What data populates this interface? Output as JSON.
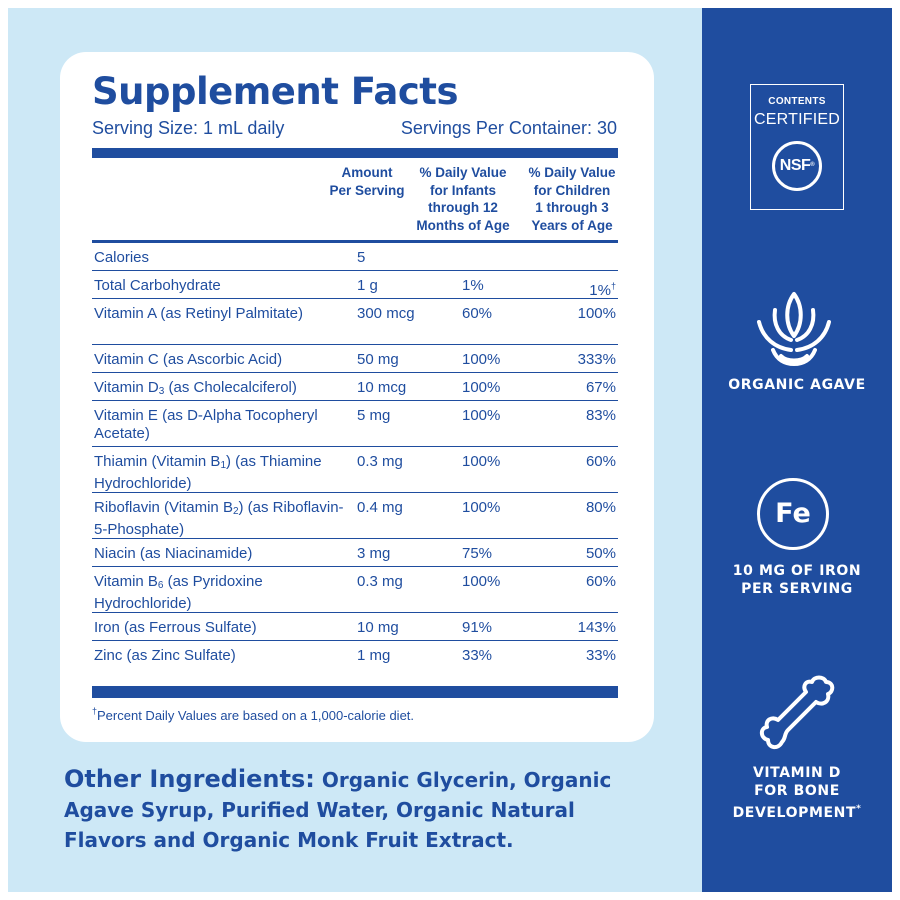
{
  "supplement_facts": {
    "title": "Supplement Facts",
    "serving_size": "Serving Size: 1 mL daily",
    "servings_per_container": "Servings Per Container: 30",
    "column_headers": {
      "amount": "Amount\nPer Serving",
      "infants": "% Daily Value\nfor Infants\nthrough 12\nMonths of Age",
      "children": "% Daily Value\nfor Children\n1 through 3\nYears of Age"
    },
    "rows": [
      {
        "nutrient": "Calories",
        "amount": "5",
        "infants": "",
        "children": ""
      },
      {
        "nutrient": "Total Carbohydrate",
        "amount": "1 g",
        "infants": "1%",
        "children": "1%"
      },
      {
        "nutrient": "Vitamin A (as Retinyl Palmitate)",
        "amount": "300 mcg",
        "infants": "60%",
        "children": "100%"
      },
      {
        "nutrient": "Vitamin C (as Ascorbic Acid)",
        "amount": "50 mg",
        "infants": "100%",
        "children": "333%"
      },
      {
        "nutrient": "Vitamin D3 (as Cholecalciferol)",
        "amount": "10 mcg",
        "infants": "100%",
        "children": "67%"
      },
      {
        "nutrient": "Vitamin E (as D-Alpha Tocopheryl Acetate)",
        "amount": "5 mg",
        "infants": "100%",
        "children": "83%"
      },
      {
        "nutrient": "Thiamin (Vitamin B1) (as Thiamine Hydrochloride)",
        "amount": "0.3 mg",
        "infants": "100%",
        "children": "60%"
      },
      {
        "nutrient": "Riboflavin (Vitamin B2) (as Riboflavin-5-Phosphate)",
        "amount": "0.4 mg",
        "infants": "100%",
        "children": "80%"
      },
      {
        "nutrient": "Niacin (as Niacinamide)",
        "amount": "3 mg",
        "infants": "75%",
        "children": "50%"
      },
      {
        "nutrient": "Vitamin B6 (as Pyridoxine Hydrochloride)",
        "amount": "0.3 mg",
        "infants": "100%",
        "children": "60%"
      },
      {
        "nutrient": "Iron (as Ferrous Sulfate)",
        "amount": "10 mg",
        "infants": "91%",
        "children": "143%"
      },
      {
        "nutrient": "Zinc (as Zinc Sulfate)",
        "amount": "1 mg",
        "infants": "33%",
        "children": "33%"
      }
    ],
    "footnote_symbol": "†",
    "footnote": "Percent Daily Values are based on a 1,000-calorie diet."
  },
  "other_ingredients": {
    "label": "Other Ingredients:",
    "text": "Organic Glycerin, Organic Agave Syrup, Purified Water, Organic Natural Flavors and Organic Monk Fruit Extract."
  },
  "badges": {
    "certified_line1": "CONTENTS",
    "certified_line2": "CERTIFIED",
    "nsf": "NSF",
    "nsf_mark": "®"
  },
  "features": {
    "agave": "ORGANIC AGAVE",
    "iron_symbol": "Fe",
    "iron": "10 MG OF IRON\nPER SERVING",
    "bone": "VITAMIN D\nFOR BONE\nDEVELOPMENT",
    "bone_mark": "*"
  },
  "colors": {
    "brand_blue": "#1f4d9f",
    "light_blue": "#cde8f6",
    "white": "#ffffff"
  }
}
